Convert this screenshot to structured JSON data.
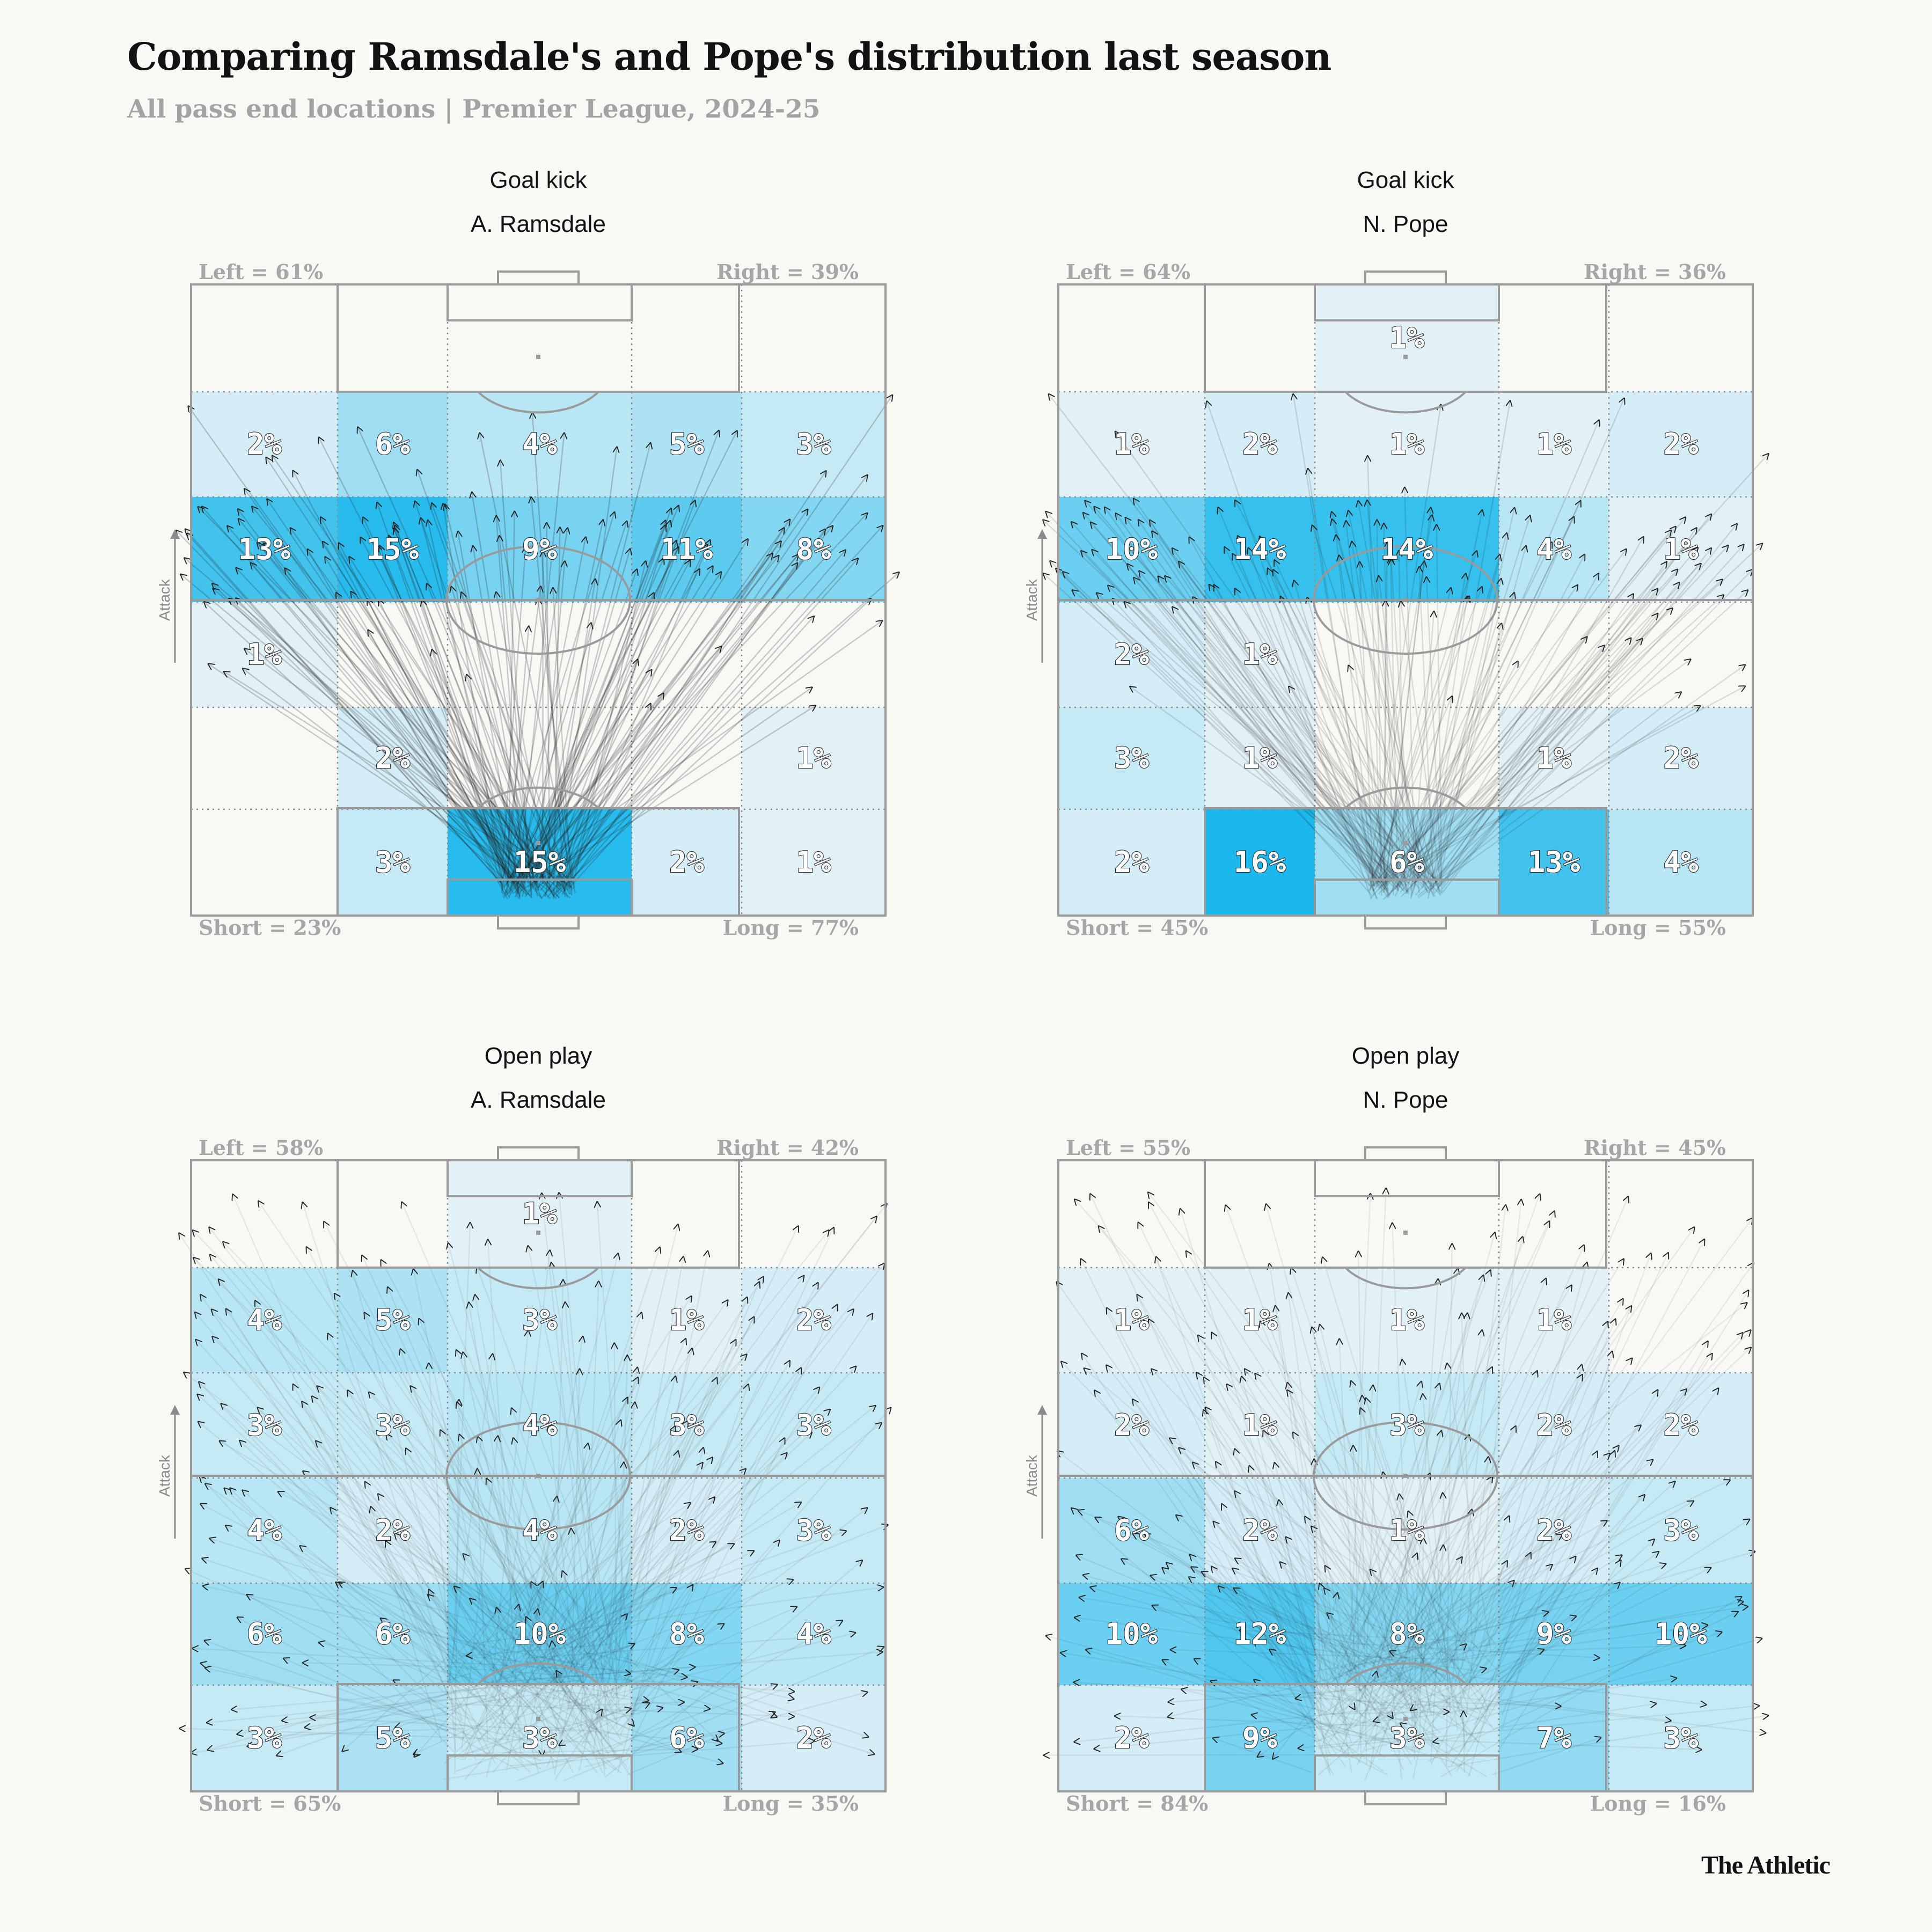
{
  "header": {
    "title": "Comparing Ramsdale's and Pope's distribution last season",
    "subtitle": "All pass end locations | Premier League, 2024-25"
  },
  "footer": {
    "logo_text": "The Athletic"
  },
  "colors": {
    "background": "#f8f8f5",
    "heat_light": "#eef5f7",
    "heat_dark": "#1ab8ec",
    "pitch_line": "#9a9a9a",
    "label_gray": "#a6a6a6",
    "arrow": "#222222"
  },
  "chart_data": [
    {
      "type": "heatmap",
      "title": "Goal kick",
      "subtitle": "A. Ramsdale",
      "attack_label": "Attack",
      "labels": {
        "left": "Left = 61%",
        "right": "Right = 39%",
        "short": "Short = 23%",
        "long": "Long = 77%"
      },
      "rows": [
        "zone-6",
        "zone-5",
        "zone-4",
        "zone-3",
        "zone-2",
        "zone-1"
      ],
      "columns": [
        "left-wide",
        "left-half-space",
        "centre",
        "right-half-space",
        "right-wide"
      ],
      "cells": [
        [
          null,
          null,
          null,
          null,
          null
        ],
        [
          "2%",
          "6%",
          "4%",
          "5%",
          "3%"
        ],
        [
          "13%",
          "15%",
          "9%",
          "11%",
          "8%"
        ],
        [
          "1%",
          null,
          null,
          null,
          null
        ],
        [
          null,
          "2%",
          null,
          null,
          "1%"
        ],
        [
          null,
          "3%",
          "15%",
          "2%",
          "1%"
        ]
      ],
      "values": [
        [
          0,
          0,
          0,
          0,
          0
        ],
        [
          2,
          6,
          4,
          5,
          3
        ],
        [
          13,
          15,
          9,
          11,
          8
        ],
        [
          1,
          0,
          0,
          0,
          0
        ],
        [
          0,
          2,
          0,
          0,
          1
        ],
        [
          0,
          3,
          15,
          2,
          1
        ]
      ]
    },
    {
      "type": "heatmap",
      "title": "Goal kick",
      "subtitle": "N. Pope",
      "attack_label": "Attack",
      "labels": {
        "left": "Left = 64%",
        "right": "Right = 36%",
        "short": "Short = 45%",
        "long": "Long = 55%"
      },
      "rows": [
        "zone-6",
        "zone-5",
        "zone-4",
        "zone-3",
        "zone-2",
        "zone-1"
      ],
      "columns": [
        "left-wide",
        "left-half-space",
        "centre",
        "right-half-space",
        "right-wide"
      ],
      "cells": [
        [
          null,
          null,
          "1%",
          null,
          null
        ],
        [
          "1%",
          "2%",
          "1%",
          "1%",
          "2%"
        ],
        [
          "10%",
          "14%",
          "14%",
          "4%",
          "1%"
        ],
        [
          "2%",
          "1%",
          null,
          null,
          null
        ],
        [
          "3%",
          "1%",
          null,
          "1%",
          "2%"
        ],
        [
          "2%",
          "16%",
          "6%",
          "13%",
          "4%"
        ]
      ],
      "values": [
        [
          0,
          0,
          1,
          0,
          0
        ],
        [
          1,
          2,
          1,
          1,
          2
        ],
        [
          10,
          14,
          14,
          4,
          1
        ],
        [
          2,
          1,
          0,
          0,
          0
        ],
        [
          3,
          1,
          0,
          1,
          2
        ],
        [
          2,
          16,
          6,
          13,
          4
        ]
      ]
    },
    {
      "type": "heatmap",
      "title": "Open play",
      "subtitle": "A. Ramsdale",
      "attack_label": "Attack",
      "labels": {
        "left": "Left = 58%",
        "right": "Right = 42%",
        "short": "Short = 65%",
        "long": "Long = 35%"
      },
      "rows": [
        "zone-6",
        "zone-5",
        "zone-4",
        "zone-3",
        "zone-2",
        "zone-1"
      ],
      "columns": [
        "left-wide",
        "left-half-space",
        "centre",
        "right-half-space",
        "right-wide"
      ],
      "cells": [
        [
          null,
          null,
          "1%",
          null,
          null
        ],
        [
          "4%",
          "5%",
          "3%",
          "1%",
          "2%"
        ],
        [
          "3%",
          "3%",
          "4%",
          "3%",
          "3%"
        ],
        [
          "4%",
          "2%",
          "4%",
          "2%",
          "3%"
        ],
        [
          "6%",
          "6%",
          "10%",
          "8%",
          "4%"
        ],
        [
          "3%",
          "5%",
          "3%",
          "6%",
          "2%"
        ]
      ],
      "values": [
        [
          0,
          0,
          1,
          0,
          0
        ],
        [
          4,
          5,
          3,
          1,
          2
        ],
        [
          3,
          3,
          4,
          3,
          3
        ],
        [
          4,
          2,
          4,
          2,
          3
        ],
        [
          6,
          6,
          10,
          8,
          4
        ],
        [
          3,
          5,
          3,
          6,
          2
        ]
      ]
    },
    {
      "type": "heatmap",
      "title": "Open play",
      "subtitle": "N. Pope",
      "attack_label": "Attack",
      "labels": {
        "left": "Left = 55%",
        "right": "Right = 45%",
        "short": "Short = 84%",
        "long": "Long = 16%"
      },
      "rows": [
        "zone-6",
        "zone-5",
        "zone-4",
        "zone-3",
        "zone-2",
        "zone-1"
      ],
      "columns": [
        "left-wide",
        "left-half-space",
        "centre",
        "right-half-space",
        "right-wide"
      ],
      "cells": [
        [
          null,
          null,
          null,
          null,
          null
        ],
        [
          "1%",
          "1%",
          "1%",
          "1%",
          null
        ],
        [
          "2%",
          "1%",
          "3%",
          "2%",
          "2%"
        ],
        [
          "6%",
          "2%",
          "1%",
          "2%",
          "3%"
        ],
        [
          "10%",
          "12%",
          "8%",
          "9%",
          "10%"
        ],
        [
          "2%",
          "9%",
          "3%",
          "7%",
          "3%"
        ]
      ],
      "values": [
        [
          0,
          0,
          0,
          0,
          0
        ],
        [
          1,
          1,
          1,
          1,
          0
        ],
        [
          2,
          1,
          3,
          2,
          2
        ],
        [
          6,
          2,
          1,
          2,
          3
        ],
        [
          10,
          12,
          8,
          9,
          10
        ],
        [
          2,
          9,
          3,
          7,
          3
        ]
      ]
    }
  ]
}
